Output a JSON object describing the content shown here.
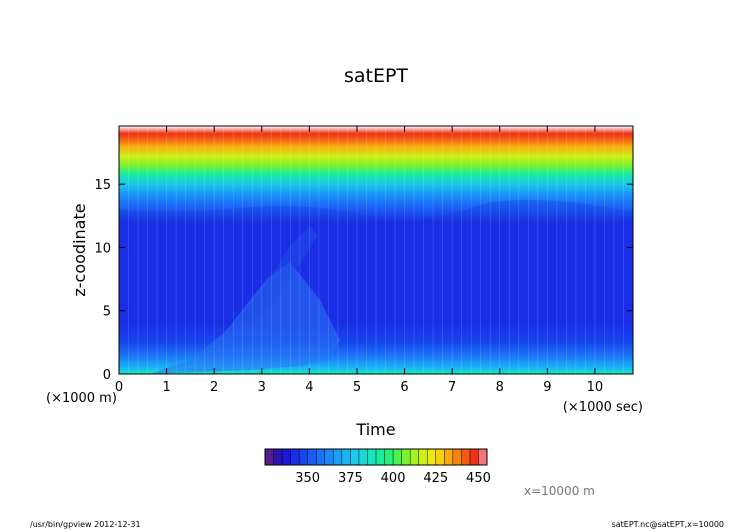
{
  "chart_data": {
    "type": "heatmap",
    "title": "satEPT",
    "xlabel": "Time",
    "ylabel": "z-coodinate",
    "x_ticks": [
      0,
      1,
      2,
      3,
      4,
      5,
      6,
      7,
      8,
      9,
      10
    ],
    "y_ticks": [
      0,
      5,
      10,
      15
    ],
    "xlim": [
      0,
      10.8
    ],
    "ylim": [
      0,
      19.6
    ],
    "x_unit": "(×1000 sec)",
    "y_unit": "(×1000 m)",
    "colorbar": {
      "ticks": [
        350,
        375,
        400,
        425,
        450
      ],
      "range": [
        325,
        450
      ],
      "step": 5,
      "colors": [
        "#5a1a8c",
        "#2b14b0",
        "#1a1ad6",
        "#1a2ee6",
        "#1646ee",
        "#1a5cf4",
        "#1a72f6",
        "#1a88f8",
        "#1a9ef8",
        "#18b4f4",
        "#1ac8ec",
        "#1ad8d8",
        "#1ae4bc",
        "#1aec9a",
        "#26f076",
        "#4ef050",
        "#7cf22e",
        "#a6f21e",
        "#ccf014",
        "#ecea10",
        "#f8d010",
        "#f8aa10",
        "#f88410",
        "#f45a14",
        "#ee3218",
        "#f0787c"
      ]
    },
    "z_profile": [
      {
        "z": 0.0,
        "value": 392
      },
      {
        "z": 0.3,
        "value": 378
      },
      {
        "z": 0.8,
        "value": 368
      },
      {
        "z": 1.5,
        "value": 356
      },
      {
        "z": 2.5,
        "value": 348
      },
      {
        "z": 4.0,
        "value": 343
      },
      {
        "z": 6.0,
        "value": 341
      },
      {
        "z": 8.0,
        "value": 340
      },
      {
        "z": 10.0,
        "value": 341
      },
      {
        "z": 12.0,
        "value": 344
      },
      {
        "z": 13.0,
        "value": 350
      },
      {
        "z": 14.0,
        "value": 362
      },
      {
        "z": 15.0,
        "value": 378
      },
      {
        "z": 15.8,
        "value": 392
      },
      {
        "z": 16.5,
        "value": 405
      },
      {
        "z": 17.2,
        "value": 418
      },
      {
        "z": 18.0,
        "value": 432
      },
      {
        "z": 18.6,
        "value": 443
      },
      {
        "z": 19.0,
        "value": 448
      }
    ]
  },
  "annotation": "x=10000 m",
  "footer": {
    "left": "/usr/bin/gpview  2012-12-31",
    "right": "satEPT.nc@satEPT,x=10000"
  }
}
